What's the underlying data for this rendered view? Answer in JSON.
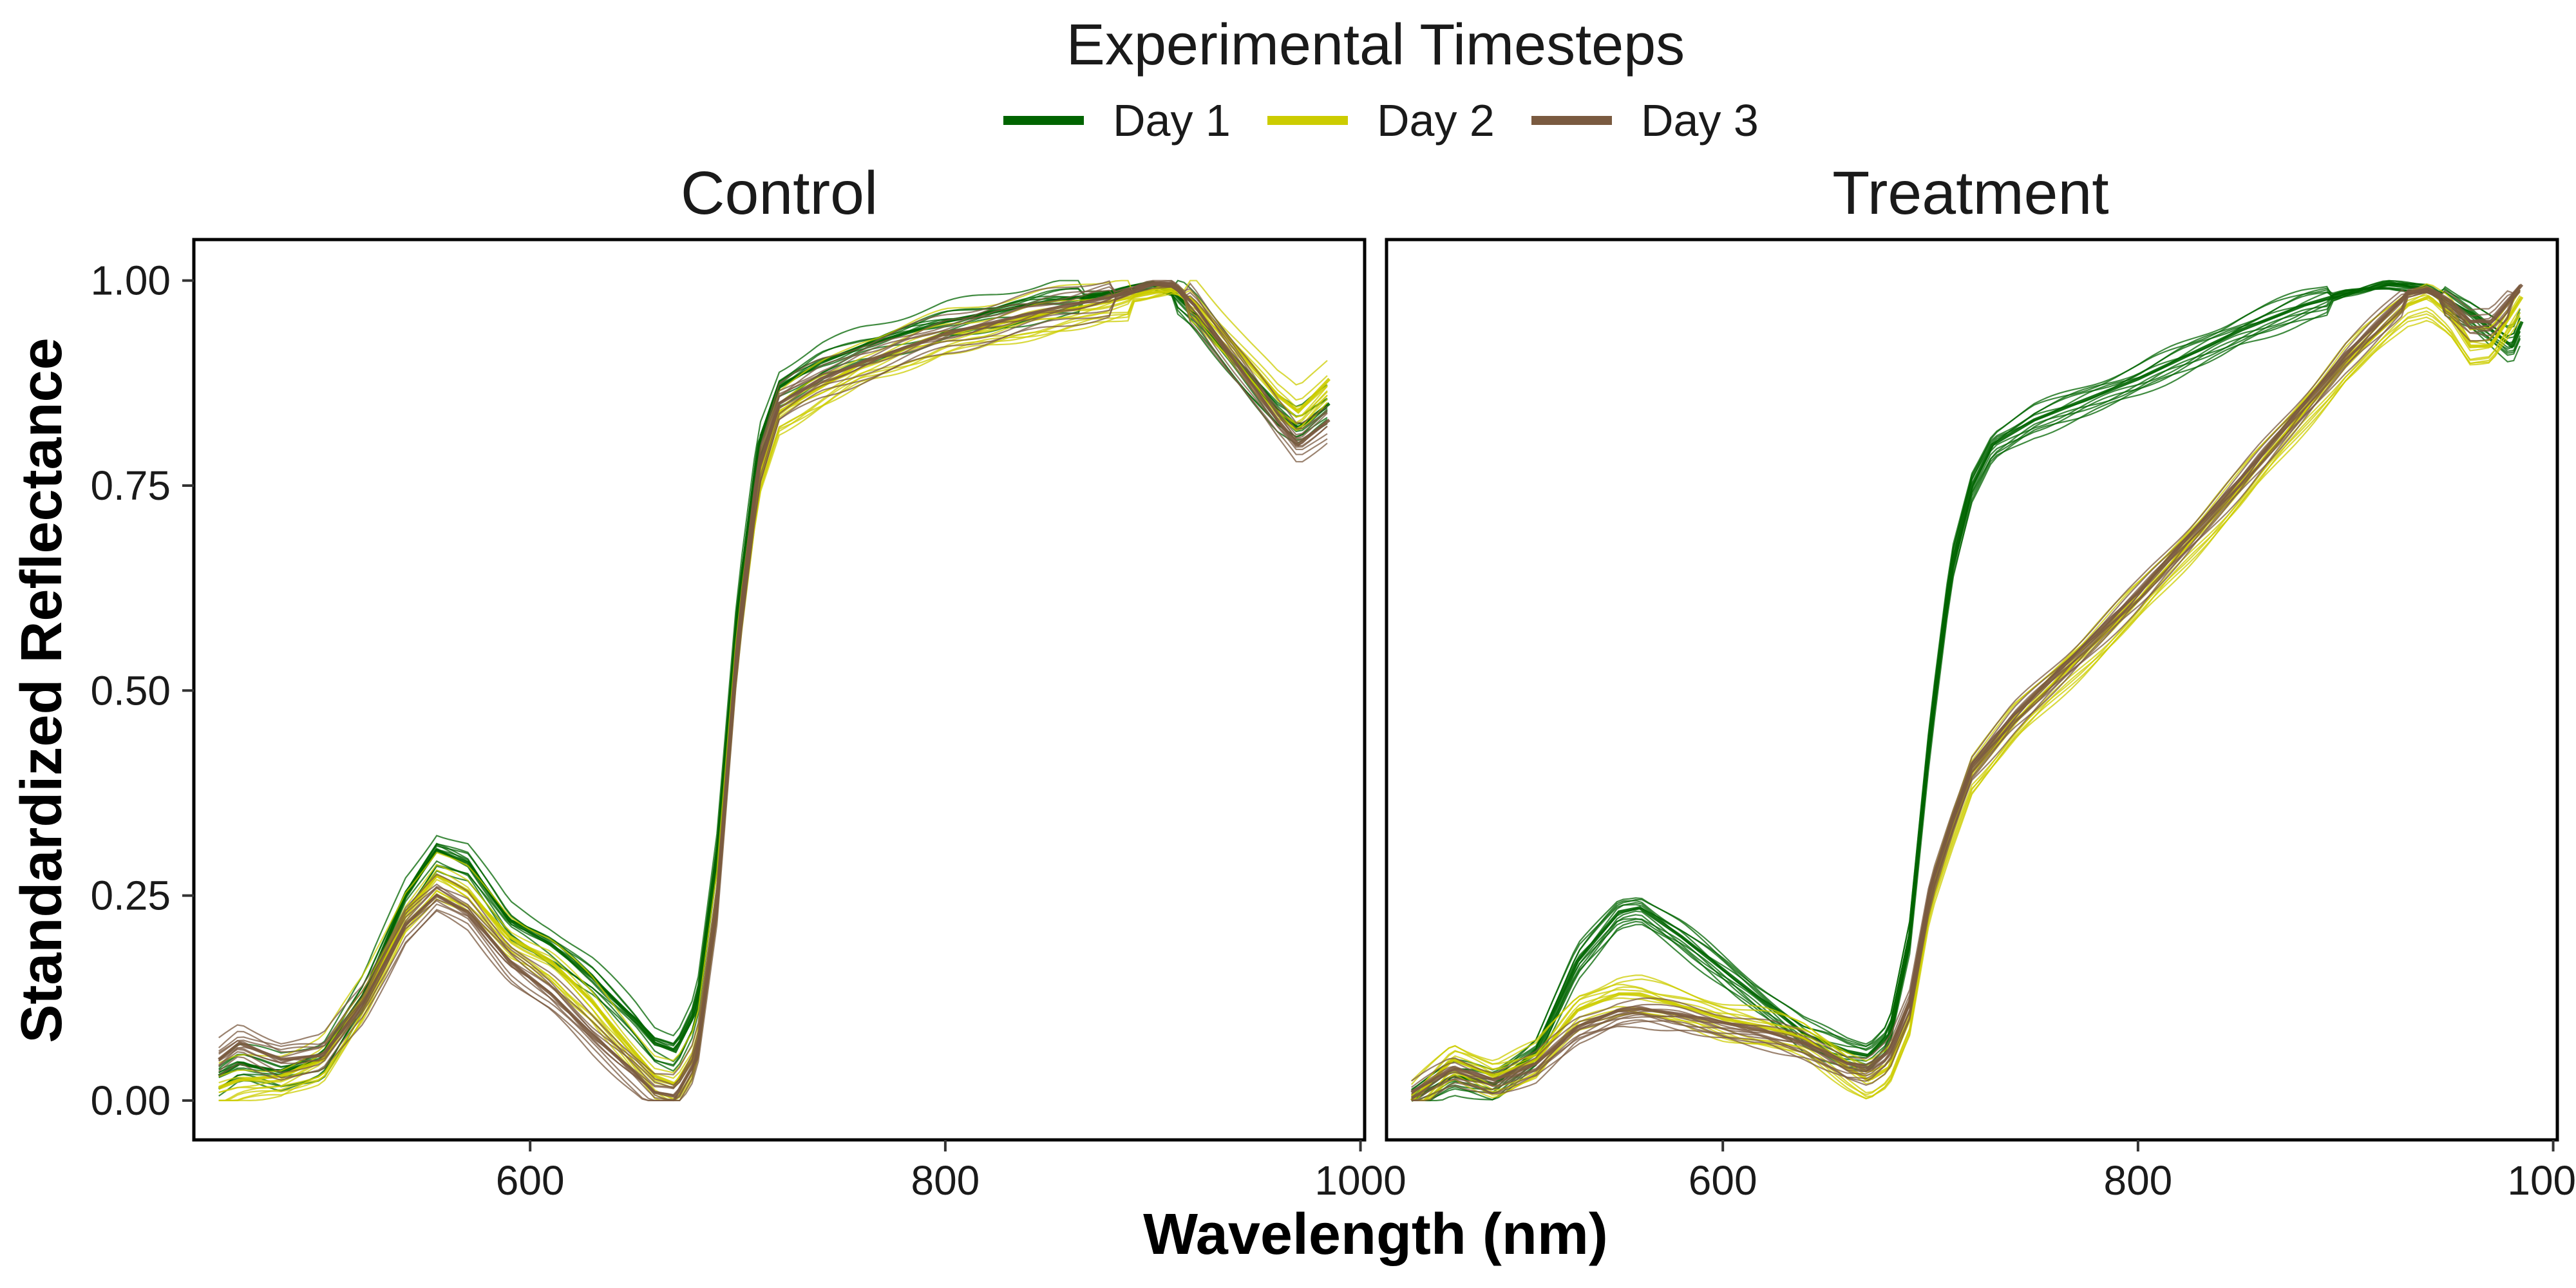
{
  "legend": {
    "title": "Experimental Timesteps"
  },
  "axes": {
    "xlabel": "Wavelength (nm)",
    "ylabel": "Standardized Reflectance"
  },
  "chart_data": {
    "type": "line",
    "title": "",
    "xlabel": "Wavelength (nm)",
    "ylabel": "Standardized Reflectance",
    "xlim": [
      438,
      1002
    ],
    "ylim": [
      -0.048,
      1.05
    ],
    "xticks": [
      600,
      800,
      1000
    ],
    "yticks": [
      0.0,
      0.25,
      0.5,
      0.75,
      1.0
    ],
    "ytick_labels": [
      "0.00",
      "0.25",
      "0.50",
      "0.75",
      "1.00"
    ],
    "grid": false,
    "legend_position": "top",
    "series_styles": [
      {
        "name": "Day 1",
        "color": "#006400"
      },
      {
        "name": "Day 2",
        "color": "#cccc00"
      },
      {
        "name": "Day 3",
        "color": "#7a5a40"
      }
    ],
    "panels": [
      {
        "title": "Control",
        "series": [
          {
            "name": "Day 1",
            "color": "#006400",
            "spread": 0.025,
            "x": [
              450,
              460,
              480,
              500,
              520,
              540,
              555,
              570,
              590,
              610,
              630,
              650,
              660,
              670,
              680,
              690,
              700,
              710,
              720,
              740,
              760,
              800,
              850,
              880,
              900,
              910,
              920,
              940,
              960,
              970,
              985
            ],
            "y": [
              0.03,
              0.045,
              0.035,
              0.05,
              0.13,
              0.25,
              0.305,
              0.29,
              0.22,
              0.19,
              0.15,
              0.1,
              0.07,
              0.06,
              0.11,
              0.3,
              0.6,
              0.8,
              0.87,
              0.9,
              0.92,
              0.95,
              0.975,
              0.985,
              0.995,
              0.985,
              0.96,
              0.9,
              0.84,
              0.82,
              0.85
            ]
          },
          {
            "name": "Day 2",
            "color": "#cccc00",
            "spread": 0.03,
            "x": [
              450,
              460,
              480,
              500,
              520,
              540,
              555,
              570,
              590,
              610,
              630,
              650,
              660,
              670,
              680,
              690,
              700,
              710,
              720,
              740,
              760,
              800,
              850,
              880,
              900,
              910,
              920,
              940,
              960,
              970,
              985
            ],
            "y": [
              0.015,
              0.025,
              0.03,
              0.05,
              0.125,
              0.23,
              0.275,
              0.255,
              0.2,
              0.17,
              0.12,
              0.06,
              0.03,
              0.02,
              0.06,
              0.25,
              0.56,
              0.76,
              0.84,
              0.87,
              0.9,
              0.935,
              0.96,
              0.975,
              0.985,
              0.99,
              0.975,
              0.92,
              0.86,
              0.84,
              0.88
            ]
          },
          {
            "name": "Day 3",
            "color": "#7a5a40",
            "spread": 0.025,
            "x": [
              450,
              460,
              480,
              500,
              520,
              540,
              555,
              570,
              590,
              610,
              630,
              650,
              660,
              670,
              680,
              690,
              700,
              710,
              720,
              740,
              760,
              800,
              850,
              880,
              900,
              910,
              920,
              940,
              960,
              970,
              985
            ],
            "y": [
              0.05,
              0.07,
              0.05,
              0.055,
              0.12,
              0.215,
              0.25,
              0.23,
              0.17,
              0.13,
              0.08,
              0.035,
              0.01,
              0.005,
              0.05,
              0.24,
              0.56,
              0.77,
              0.85,
              0.88,
              0.9,
              0.935,
              0.965,
              0.98,
              0.995,
              0.995,
              0.97,
              0.9,
              0.83,
              0.8,
              0.83
            ]
          }
        ]
      },
      {
        "title": "Treatment",
        "series": [
          {
            "name": "Day 1",
            "color": "#006400",
            "spread": 0.02,
            "x": [
              450,
              470,
              490,
              510,
              530,
              550,
              560,
              580,
              600,
              620,
              640,
              660,
              670,
              680,
              690,
              700,
              710,
              720,
              730,
              750,
              800,
              850,
              880,
              900,
              920,
              940,
              960,
              980,
              985
            ],
            "y": [
              0.0,
              0.03,
              0.02,
              0.06,
              0.17,
              0.23,
              0.235,
              0.2,
              0.16,
              0.12,
              0.08,
              0.06,
              0.055,
              0.08,
              0.2,
              0.45,
              0.65,
              0.75,
              0.8,
              0.83,
              0.88,
              0.94,
              0.97,
              0.985,
              0.995,
              0.99,
              0.96,
              0.92,
              0.95
            ]
          },
          {
            "name": "Day 2",
            "color": "#cccc00",
            "spread": 0.025,
            "x": [
              450,
              470,
              490,
              510,
              530,
              550,
              560,
              580,
              600,
              620,
              640,
              660,
              670,
              680,
              690,
              700,
              710,
              720,
              740,
              760,
              800,
              850,
              900,
              930,
              940,
              950,
              960,
              970,
              980,
              985
            ],
            "y": [
              0.0,
              0.05,
              0.03,
              0.05,
              0.11,
              0.13,
              0.13,
              0.115,
              0.1,
              0.09,
              0.075,
              0.04,
              0.025,
              0.04,
              0.1,
              0.25,
              0.33,
              0.4,
              0.46,
              0.51,
              0.61,
              0.75,
              0.9,
              0.97,
              0.98,
              0.96,
              0.92,
              0.92,
              0.96,
              0.98
            ]
          },
          {
            "name": "Day 3",
            "color": "#7a5a40",
            "spread": 0.02,
            "x": [
              450,
              470,
              490,
              510,
              530,
              550,
              560,
              580,
              600,
              620,
              640,
              660,
              670,
              680,
              690,
              700,
              710,
              720,
              740,
              760,
              800,
              850,
              900,
              930,
              940,
              950,
              960,
              970,
              980,
              985
            ],
            "y": [
              0.01,
              0.04,
              0.025,
              0.045,
              0.09,
              0.11,
              0.112,
              0.105,
              0.095,
              0.085,
              0.07,
              0.045,
              0.04,
              0.06,
              0.12,
              0.26,
              0.34,
              0.41,
              0.47,
              0.52,
              0.62,
              0.76,
              0.91,
              0.985,
              0.99,
              0.975,
              0.95,
              0.95,
              0.98,
              0.995
            ]
          }
        ]
      }
    ]
  }
}
